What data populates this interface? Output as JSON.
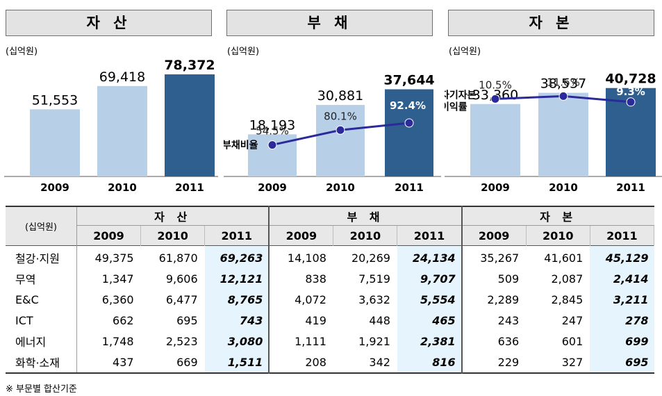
{
  "panels": [
    {
      "title": "자 산",
      "unit": "(십억원)"
    },
    {
      "title": "부 채",
      "unit": "(십억원)"
    },
    {
      "title": "자 본",
      "unit": "(십억원)"
    }
  ],
  "chart_data": [
    {
      "type": "bar",
      "title": "자 산",
      "unit": "(십억원)",
      "categories": [
        "2009",
        "2010",
        "2011"
      ],
      "values": [
        51553,
        69418,
        78372
      ],
      "value_labels": [
        "51,553",
        "69,418",
        "78,372"
      ],
      "colors": [
        "#b8cfe8",
        "#b8cfe8",
        "#2e5f8f"
      ],
      "ylim": [
        0,
        80000
      ]
    },
    {
      "type": "bar",
      "title": "부 채",
      "unit": "(십억원)",
      "categories": [
        "2009",
        "2010",
        "2011"
      ],
      "values": [
        18193,
        30881,
        37644
      ],
      "value_labels": [
        "18,193",
        "30,881",
        "37,644"
      ],
      "colors": [
        "#b8cfe8",
        "#b8cfe8",
        "#2e5f8f"
      ],
      "ylim": [
        0,
        45000
      ],
      "line": {
        "name": "부채비율",
        "values": [
          54.5,
          80.1,
          92.4
        ],
        "labels": [
          "54.5%",
          "80.1%",
          "92.4%"
        ],
        "color": "#2a2a9a",
        "ylim": [
          0,
          180
        ]
      }
    },
    {
      "type": "bar",
      "title": "자 본",
      "unit": "(십억원)",
      "categories": [
        "2009",
        "2010",
        "2011"
      ],
      "values": [
        33360,
        38537,
        40728
      ],
      "value_labels": [
        "33,360",
        "38,537",
        "40,728"
      ],
      "colors": [
        "#b8cfe8",
        "#b8cfe8",
        "#2e5f8f"
      ],
      "ylim": [
        0,
        48000
      ],
      "line": {
        "name": "자기자본\n이익률",
        "values": [
          10.5,
          11.6,
          9.3
        ],
        "labels": [
          "10.5%",
          "11.6%",
          "9.3%"
        ],
        "color": "#2a2a9a",
        "ylim": [
          -20,
          21
        ]
      }
    },
    {
      "type": "table",
      "unit": "(십억원)",
      "groups": [
        "자 산",
        "부 채",
        "자 본"
      ],
      "years": [
        "2009",
        "2010",
        "2011"
      ],
      "rows": [
        {
          "label": "철강·지원",
          "values": [
            "49,375",
            "61,870",
            "69,263",
            "14,108",
            "20,269",
            "24,134",
            "35,267",
            "41,601",
            "45,129"
          ]
        },
        {
          "label": "무역",
          "values": [
            "1,347",
            "9,606",
            "12,121",
            "838",
            "7,519",
            "9,707",
            "509",
            "2,087",
            "2,414"
          ]
        },
        {
          "label": "E&C",
          "values": [
            "6,360",
            "6,477",
            "8,765",
            "4,072",
            "3,632",
            "5,554",
            "2,289",
            "2,845",
            "3,211"
          ]
        },
        {
          "label": "ICT",
          "values": [
            "662",
            "695",
            "743",
            "419",
            "448",
            "465",
            "243",
            "247",
            "278"
          ]
        },
        {
          "label": "에너지",
          "values": [
            "1,748",
            "2,523",
            "3,080",
            "1,111",
            "1,921",
            "2,381",
            "636",
            "601",
            "699"
          ]
        },
        {
          "label": "화학·소재",
          "values": [
            "437",
            "669",
            "1,511",
            "208",
            "342",
            "816",
            "229",
            "327",
            "695"
          ]
        }
      ]
    }
  ],
  "footnote": "※ 부문별 합산기준"
}
